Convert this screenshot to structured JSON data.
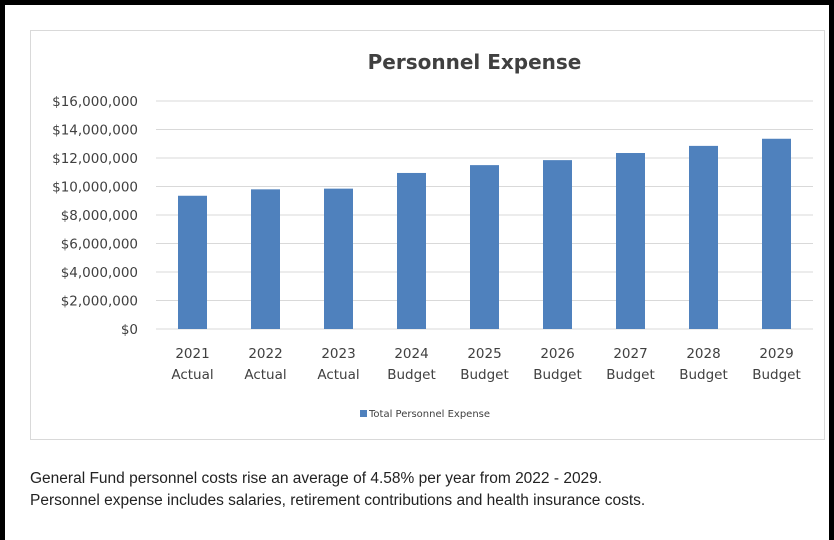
{
  "chart_data": {
    "type": "bar",
    "title": "Personnel Expense",
    "categories": [
      [
        "2021",
        "Actual"
      ],
      [
        "2022",
        "Actual"
      ],
      [
        "2023",
        "Actual"
      ],
      [
        "2024",
        "Budget"
      ],
      [
        "2025",
        "Budget"
      ],
      [
        "2026",
        "Budget"
      ],
      [
        "2027",
        "Budget"
      ],
      [
        "2028",
        "Budget"
      ],
      [
        "2029",
        "Budget"
      ]
    ],
    "series": [
      {
        "name": "Total Personnel Expense",
        "color": "#4f81bd",
        "values": [
          9350000,
          9800000,
          9850000,
          10950000,
          11500000,
          11850000,
          12350000,
          12850000,
          13350000
        ]
      }
    ],
    "ylim": [
      0,
      16000000
    ],
    "yticks": [
      0,
      2000000,
      4000000,
      6000000,
      8000000,
      10000000,
      12000000,
      14000000,
      16000000
    ],
    "ytick_labels": [
      "$0",
      "$2,000,000",
      "$4,000,000",
      "$6,000,000",
      "$8,000,000",
      "$10,000,000",
      "$12,000,000",
      "$14,000,000",
      "$16,000,000"
    ],
    "grid": true,
    "legend": "bottom"
  },
  "note": {
    "line1": "General Fund personnel costs rise an average of 4.58% per year from 2022 - 2029.",
    "line2": "Personnel expense includes salaries, retirement contributions and health insurance costs."
  }
}
